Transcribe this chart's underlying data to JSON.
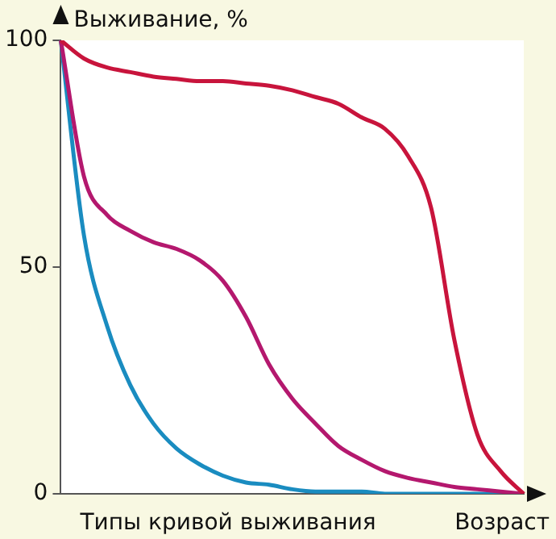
{
  "chart_data": {
    "type": "line",
    "ylabel": "Выживание, %",
    "xlabel": "Возраст",
    "annotations": [
      "Типы кривой выживания"
    ],
    "categories": [
      null,
      null,
      null,
      null,
      null,
      null,
      null,
      null,
      null,
      null,
      null,
      null,
      null,
      null,
      null,
      null,
      null,
      null,
      null,
      null,
      null
    ],
    "series": [
      {
        "color": "#c8143c",
        "values": [
          100,
          96,
          94,
          93,
          92,
          91.5,
          91,
          91,
          90.5,
          90,
          89,
          87.5,
          86,
          83,
          80.5,
          74.5,
          63,
          34,
          13,
          5,
          0
        ]
      },
      {
        "color": "#b4186e",
        "values": [
          100,
          70,
          61.5,
          58,
          55.5,
          54,
          51.5,
          47,
          39,
          28.5,
          21,
          15.5,
          10.5,
          7.5,
          5,
          3.5,
          2.5,
          1.5,
          1,
          0.5,
          0
        ]
      },
      {
        "color": "#1a8cc0",
        "values": [
          100,
          57,
          37,
          24,
          15.5,
          10,
          6.5,
          4,
          2.5,
          2,
          1,
          0.5,
          0.5,
          0.5,
          0,
          0,
          0,
          0,
          0,
          0,
          0
        ]
      }
    ],
    "ylim": [
      0,
      100
    ],
    "yticks": [
      0,
      50,
      100
    ],
    "grid": false,
    "legend": false,
    "marker": "none",
    "line_style": "solid"
  }
}
